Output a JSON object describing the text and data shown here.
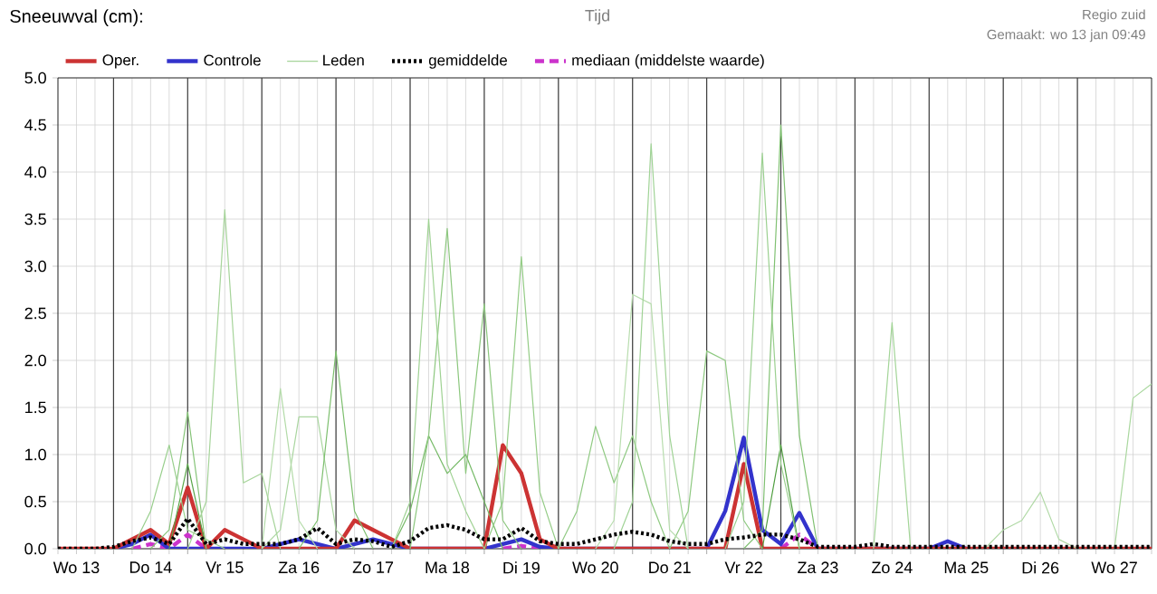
{
  "chart_data": {
    "type": "line",
    "title": "Sneeuwval (cm):",
    "xlabel": "Tijd",
    "annotations": [
      "Regio zuid",
      "Gemaakt: wo 13 jan 09:49"
    ],
    "categories": [
      null,
      "Wo 13",
      null,
      null,
      null,
      "Do 14",
      null,
      null,
      null,
      "Vr 15",
      null,
      null,
      null,
      "Za 16",
      null,
      null,
      null,
      "Zo 17",
      null,
      null,
      null,
      "Ma 18",
      null,
      null,
      null,
      "Di 19",
      null,
      null,
      null,
      "Wo 20",
      null,
      null,
      null,
      "Do 21",
      null,
      null,
      null,
      "Vr 22",
      null,
      null,
      null,
      "Za 23",
      null,
      null,
      null,
      "Zo 24",
      null,
      null,
      null,
      "Ma 25",
      null,
      null,
      null,
      "Di 26",
      null,
      null,
      null,
      "Wo 27",
      null,
      null
    ],
    "series": [
      {
        "name": "Oper.",
        "color": "#cc3333",
        "line_style": "solid",
        "values": [
          0,
          0,
          0,
          0,
          0.1,
          0.2,
          0.05,
          0.65,
          0,
          0.2,
          0.1,
          0,
          0,
          0,
          0,
          0,
          0.3,
          0.2,
          0.1,
          0,
          0,
          0,
          0,
          0,
          1.1,
          0.8,
          0.1,
          0,
          0,
          0,
          0,
          0,
          0,
          0,
          0,
          0,
          0,
          0.9,
          0,
          0,
          0,
          0,
          0,
          0,
          0,
          0,
          0,
          0,
          0,
          0,
          0,
          0,
          0,
          0,
          0,
          0,
          0,
          0,
          0,
          0
        ]
      },
      {
        "name": "Controle",
        "color": "#3333cc",
        "line_style": "solid",
        "values": [
          null,
          null,
          null,
          0,
          0.05,
          0.15,
          0,
          0,
          0,
          0,
          0,
          0,
          0.05,
          0.1,
          0.05,
          0,
          0.05,
          0.1,
          0.05,
          0,
          0,
          0,
          0,
          0,
          0.05,
          0.1,
          0.02,
          0,
          0,
          0,
          0,
          0,
          0,
          0,
          0,
          0,
          0.4,
          1.18,
          0.2,
          0.05,
          0.38,
          0,
          0,
          0,
          0,
          0,
          0,
          0,
          0.08,
          0,
          null,
          null,
          null,
          null,
          null,
          null,
          null,
          null,
          null,
          null
        ]
      },
      {
        "name": "Leden",
        "color": "#a6d49a",
        "line_style": "solid",
        "values": [
          null,
          null,
          null,
          null,
          null,
          null,
          null,
          0,
          0.5,
          3.6,
          0.7,
          0.8,
          0,
          null,
          null,
          null,
          null,
          null,
          null,
          null,
          null,
          null,
          null,
          null,
          null,
          null,
          null,
          null,
          null,
          null,
          null,
          null,
          null,
          null,
          null,
          null,
          null,
          null,
          null,
          null,
          null,
          null,
          null,
          null,
          null,
          null,
          null,
          null,
          null,
          null,
          null,
          null,
          null,
          null,
          null,
          null,
          null,
          null,
          null,
          null
        ]
      },
      {
        "color": "#9fd293",
        "line_style": "solid",
        "values": [
          null,
          null,
          null,
          null,
          null,
          null,
          null,
          null,
          null,
          null,
          null,
          null,
          null,
          null,
          null,
          null,
          null,
          null,
          0,
          0.5,
          3.5,
          0.9,
          0.4,
          0,
          null,
          null,
          null,
          null,
          null,
          null,
          null,
          null,
          null,
          null,
          null,
          null,
          null,
          null,
          null,
          null,
          null,
          null,
          null,
          null,
          null,
          null,
          null,
          null,
          null,
          null,
          null,
          null,
          null,
          null,
          null,
          null,
          null,
          null,
          null,
          null
        ]
      },
      {
        "color": "#8cc77e",
        "line_style": "solid",
        "values": [
          null,
          null,
          null,
          null,
          null,
          null,
          null,
          null,
          null,
          null,
          null,
          null,
          null,
          null,
          null,
          null,
          null,
          null,
          null,
          0,
          1.2,
          3.4,
          0.8,
          2.6,
          0.3,
          0,
          null,
          null,
          null,
          null,
          null,
          null,
          null,
          null,
          null,
          null,
          null,
          null,
          null,
          null,
          null,
          null,
          null,
          null,
          null,
          null,
          null,
          null,
          null,
          null,
          null,
          null,
          null,
          null,
          null,
          null,
          null,
          null,
          null,
          null
        ]
      },
      {
        "color": "#94cc86",
        "line_style": "solid",
        "values": [
          null,
          null,
          null,
          null,
          null,
          null,
          null,
          null,
          null,
          null,
          null,
          null,
          null,
          null,
          null,
          null,
          null,
          null,
          null,
          null,
          null,
          null,
          null,
          0,
          0.5,
          3.1,
          0.6,
          0,
          null,
          null,
          null,
          null,
          null,
          null,
          null,
          null,
          null,
          null,
          null,
          null,
          null,
          null,
          null,
          null,
          null,
          null,
          null,
          null,
          null,
          null,
          null,
          null,
          null,
          null,
          null,
          null,
          null,
          null,
          null,
          null
        ]
      },
      {
        "color": "#7dbf6e",
        "line_style": "solid",
        "values": [
          null,
          null,
          null,
          null,
          null,
          null,
          null,
          null,
          null,
          null,
          null,
          null,
          null,
          0,
          0.3,
          2.1,
          0.4,
          0,
          null,
          null,
          null,
          null,
          null,
          null,
          null,
          null,
          null,
          null,
          null,
          null,
          null,
          null,
          null,
          null,
          null,
          null,
          null,
          null,
          null,
          null,
          null,
          null,
          null,
          null,
          null,
          null,
          null,
          null,
          null,
          null,
          null,
          null,
          null,
          null,
          null,
          null,
          null,
          null,
          null,
          null
        ]
      },
      {
        "color": "#b3dba8",
        "line_style": "solid",
        "values": [
          null,
          null,
          null,
          null,
          null,
          null,
          null,
          null,
          null,
          null,
          null,
          0,
          1.7,
          0.3,
          0,
          null,
          null,
          null,
          null,
          null,
          null,
          null,
          null,
          null,
          null,
          null,
          null,
          null,
          null,
          null,
          null,
          null,
          null,
          null,
          null,
          null,
          null,
          null,
          null,
          null,
          null,
          null,
          null,
          null,
          null,
          null,
          null,
          null,
          null,
          null,
          null,
          null,
          null,
          null,
          null,
          null,
          null,
          null,
          null,
          null
        ]
      },
      {
        "color": "#aad6a0",
        "line_style": "solid",
        "values": [
          null,
          null,
          null,
          null,
          null,
          null,
          null,
          null,
          null,
          null,
          null,
          0,
          0.2,
          1.4,
          1.4,
          0.2,
          0,
          null,
          null,
          null,
          null,
          null,
          null,
          null,
          null,
          null,
          null,
          null,
          null,
          null,
          null,
          null,
          null,
          null,
          null,
          null,
          null,
          null,
          null,
          null,
          null,
          null,
          null,
          null,
          null,
          null,
          null,
          null,
          null,
          null,
          null,
          null,
          null,
          null,
          null,
          null,
          null,
          null,
          null,
          null
        ]
      },
      {
        "color": "#98cf8c",
        "line_style": "solid",
        "values": [
          null,
          null,
          null,
          null,
          0,
          0.4,
          1.1,
          0.2,
          0.1,
          0,
          null,
          null,
          null,
          null,
          null,
          null,
          null,
          null,
          null,
          null,
          null,
          null,
          null,
          null,
          null,
          null,
          null,
          null,
          null,
          null,
          null,
          null,
          null,
          null,
          null,
          null,
          null,
          null,
          null,
          null,
          null,
          null,
          null,
          null,
          null,
          null,
          null,
          null,
          null,
          null,
          null,
          null,
          null,
          null,
          null,
          null,
          null,
          null,
          null,
          null
        ]
      },
      {
        "color": "#86c478",
        "line_style": "solid",
        "values": [
          null,
          null,
          null,
          null,
          null,
          0,
          0.2,
          1.45,
          0,
          null,
          null,
          null,
          null,
          null,
          null,
          null,
          null,
          null,
          null,
          null,
          null,
          null,
          null,
          null,
          null,
          null,
          null,
          null,
          null,
          null,
          null,
          null,
          null,
          null,
          null,
          null,
          null,
          null,
          null,
          null,
          null,
          null,
          null,
          null,
          null,
          null,
          null,
          null,
          null,
          null,
          null,
          null,
          null,
          null,
          null,
          null,
          null,
          null,
          null,
          null
        ]
      },
      {
        "color": "#a0d396",
        "line_style": "solid",
        "values": [
          null,
          null,
          null,
          null,
          null,
          null,
          null,
          null,
          null,
          null,
          null,
          null,
          null,
          null,
          null,
          null,
          null,
          null,
          null,
          null,
          null,
          null,
          null,
          null,
          null,
          null,
          null,
          null,
          null,
          null,
          0,
          0.5,
          4.3,
          1.2,
          0,
          null,
          null,
          null,
          null,
          null,
          null,
          null,
          null,
          null,
          null,
          null,
          null,
          null,
          null,
          null,
          null,
          null,
          null,
          null,
          null,
          null,
          null,
          null,
          null,
          null
        ]
      },
      {
        "color": "#b8ddae",
        "line_style": "solid",
        "values": [
          null,
          null,
          null,
          null,
          null,
          null,
          null,
          null,
          null,
          null,
          null,
          null,
          null,
          null,
          null,
          null,
          null,
          null,
          null,
          null,
          null,
          null,
          null,
          null,
          null,
          null,
          null,
          null,
          null,
          0,
          0.3,
          2.7,
          2.6,
          0.2,
          0,
          null,
          null,
          null,
          null,
          null,
          null,
          null,
          null,
          null,
          null,
          null,
          null,
          null,
          null,
          null,
          null,
          null,
          null,
          null,
          null,
          null,
          null,
          null,
          null,
          null
        ]
      },
      {
        "color": "#9bd090",
        "line_style": "solid",
        "values": [
          null,
          null,
          null,
          null,
          null,
          null,
          null,
          null,
          null,
          null,
          null,
          null,
          null,
          null,
          null,
          null,
          null,
          null,
          null,
          null,
          null,
          null,
          null,
          null,
          null,
          null,
          null,
          null,
          null,
          null,
          null,
          null,
          null,
          null,
          null,
          null,
          0,
          0.5,
          4.2,
          0.9,
          0,
          null,
          null,
          null,
          null,
          null,
          null,
          null,
          null,
          null,
          null,
          null,
          null,
          null,
          null,
          null,
          null,
          null,
          null,
          null
        ]
      },
      {
        "color": "#80c172",
        "line_style": "solid",
        "values": [
          null,
          null,
          null,
          null,
          null,
          null,
          null,
          null,
          null,
          null,
          null,
          null,
          null,
          null,
          null,
          null,
          null,
          null,
          null,
          null,
          null,
          null,
          null,
          null,
          null,
          null,
          null,
          null,
          null,
          null,
          null,
          null,
          null,
          null,
          null,
          null,
          null,
          0,
          0.2,
          4.5,
          1.2,
          0,
          null,
          null,
          null,
          null,
          null,
          null,
          null,
          null,
          null,
          null,
          null,
          null,
          null,
          null,
          null,
          null,
          null,
          null
        ]
      },
      {
        "color": "#a3d598",
        "line_style": "solid",
        "values": [
          null,
          null,
          null,
          null,
          null,
          null,
          null,
          null,
          null,
          null,
          null,
          null,
          null,
          null,
          null,
          null,
          null,
          null,
          null,
          null,
          null,
          null,
          null,
          null,
          null,
          null,
          null,
          null,
          null,
          null,
          null,
          null,
          null,
          null,
          null,
          null,
          null,
          null,
          null,
          null,
          null,
          null,
          null,
          null,
          0,
          2.4,
          0,
          null,
          null,
          null,
          null,
          null,
          null,
          null,
          null,
          null,
          null,
          null,
          null,
          null
        ]
      },
      {
        "color": "#a9d79e",
        "line_style": "solid",
        "values": [
          null,
          null,
          null,
          null,
          null,
          null,
          null,
          null,
          null,
          null,
          null,
          null,
          null,
          null,
          null,
          null,
          null,
          null,
          null,
          null,
          null,
          null,
          null,
          null,
          null,
          null,
          null,
          null,
          null,
          null,
          null,
          null,
          null,
          null,
          null,
          null,
          null,
          null,
          null,
          null,
          null,
          null,
          null,
          null,
          null,
          null,
          null,
          null,
          null,
          null,
          null,
          null,
          null,
          null,
          null,
          null,
          null,
          0,
          1.6,
          1.75
        ]
      },
      {
        "color": "#8ec980",
        "line_style": "solid",
        "values": [
          null,
          null,
          null,
          null,
          null,
          null,
          null,
          null,
          null,
          null,
          null,
          null,
          null,
          null,
          null,
          null,
          null,
          null,
          null,
          null,
          null,
          null,
          null,
          null,
          null,
          null,
          null,
          null,
          null,
          null,
          null,
          null,
          null,
          0,
          0.4,
          2.1,
          2.0,
          0.3,
          0,
          null,
          null,
          null,
          null,
          null,
          null,
          null,
          null,
          null,
          null,
          null,
          null,
          null,
          null,
          null,
          null,
          null,
          null,
          null,
          null,
          null
        ]
      },
      {
        "color": "#74b965",
        "line_style": "solid",
        "values": [
          null,
          null,
          null,
          null,
          null,
          null,
          null,
          null,
          null,
          null,
          null,
          null,
          null,
          null,
          null,
          null,
          null,
          null,
          0,
          0.4,
          1.2,
          0.8,
          1.0,
          0.5,
          0,
          null,
          null,
          null,
          null,
          null,
          null,
          null,
          null,
          null,
          null,
          null,
          null,
          null,
          null,
          null,
          null,
          null,
          null,
          null,
          null,
          null,
          null,
          null,
          null,
          null,
          null,
          null,
          null,
          null,
          null,
          null,
          null,
          null,
          null,
          null
        ]
      },
      {
        "color": "#90ca83",
        "line_style": "solid",
        "values": [
          null,
          null,
          null,
          null,
          null,
          null,
          null,
          null,
          null,
          null,
          null,
          null,
          null,
          null,
          null,
          null,
          null,
          null,
          null,
          null,
          null,
          null,
          null,
          null,
          null,
          null,
          null,
          0,
          0.4,
          1.3,
          0.7,
          1.2,
          0.5,
          0,
          null,
          null,
          null,
          null,
          null,
          null,
          null,
          null,
          null,
          null,
          null,
          null,
          null,
          null,
          null,
          null,
          null,
          null,
          null,
          null,
          null,
          null,
          null,
          null,
          null,
          null
        ]
      },
      {
        "color": "#b0d9a5",
        "line_style": "solid",
        "values": [
          null,
          null,
          null,
          null,
          null,
          null,
          null,
          null,
          null,
          null,
          null,
          null,
          null,
          null,
          null,
          null,
          null,
          null,
          null,
          null,
          null,
          null,
          null,
          null,
          null,
          null,
          null,
          null,
          null,
          null,
          null,
          null,
          null,
          null,
          null,
          null,
          null,
          null,
          null,
          null,
          null,
          null,
          null,
          null,
          null,
          null,
          null,
          null,
          null,
          null,
          0,
          0.2,
          0.3,
          0.6,
          0.1,
          0,
          null,
          null,
          null,
          null
        ]
      },
      {
        "color": "#4f9e3f",
        "line_style": "solid",
        "values": [
          null,
          null,
          null,
          null,
          null,
          null,
          null,
          null,
          null,
          null,
          null,
          null,
          null,
          null,
          null,
          null,
          null,
          null,
          null,
          null,
          null,
          null,
          null,
          null,
          null,
          null,
          null,
          null,
          null,
          null,
          null,
          null,
          null,
          null,
          null,
          null,
          null,
          null,
          0,
          1.1,
          0,
          null,
          null,
          null,
          null,
          null,
          null,
          null,
          null,
          null,
          null,
          null,
          null,
          null,
          null,
          null,
          null,
          null,
          null,
          null
        ]
      },
      {
        "color": "#5aa64a",
        "line_style": "solid",
        "values": [
          null,
          null,
          null,
          null,
          null,
          null,
          0,
          0.9,
          0,
          null,
          null,
          null,
          null,
          null,
          null,
          null,
          null,
          null,
          null,
          null,
          null,
          null,
          null,
          null,
          null,
          null,
          null,
          null,
          null,
          null,
          null,
          null,
          null,
          null,
          null,
          null,
          null,
          null,
          null,
          null,
          null,
          null,
          null,
          null,
          null,
          null,
          null,
          null,
          null,
          null,
          null,
          null,
          null,
          null,
          null,
          null,
          null,
          null,
          null,
          null
        ]
      },
      {
        "name": "gemiddelde",
        "color": "#000000",
        "line_style": "dotted",
        "values": [
          0,
          0,
          0,
          0.02,
          0.08,
          0.12,
          0.05,
          0.32,
          0.05,
          0.1,
          0.05,
          0.05,
          0.05,
          0.1,
          0.22,
          0.05,
          0.1,
          0.08,
          0.02,
          0.08,
          0.22,
          0.25,
          0.2,
          0.1,
          0.1,
          0.22,
          0.08,
          0.05,
          0.05,
          0.1,
          0.15,
          0.18,
          0.15,
          0.08,
          0.05,
          0.05,
          0.1,
          0.12,
          0.15,
          0.15,
          0.1,
          0.02,
          0.02,
          0.02,
          0.05,
          0.02,
          0.02,
          0.02,
          0.02,
          0.02,
          0.02,
          0.02,
          0.02,
          0.02,
          0.02,
          0.02,
          0.02,
          0.02,
          0.02,
          0.02
        ]
      },
      {
        "name": "mediaan (middelste waarde)",
        "color": "#cc33cc",
        "line_style": "dashed",
        "values": [
          null,
          null,
          null,
          null,
          0,
          0.05,
          0,
          0.15,
          0,
          null,
          null,
          null,
          null,
          null,
          null,
          null,
          null,
          null,
          null,
          null,
          null,
          null,
          null,
          null,
          0,
          0.03,
          0,
          null,
          null,
          null,
          null,
          null,
          null,
          null,
          null,
          null,
          null,
          null,
          null,
          0,
          0.15,
          0,
          null,
          null,
          null,
          null,
          null,
          null,
          null,
          null,
          null,
          null,
          null,
          null,
          null,
          null,
          null,
          null,
          null,
          null
        ]
      }
    ],
    "ylim": [
      0,
      5
    ],
    "yticks": [
      {
        "value": 0,
        "label": "0.0"
      },
      {
        "value": 0.5,
        "label": "0.5"
      },
      {
        "value": 1,
        "label": "1.0"
      },
      {
        "value": 1.5,
        "label": "1.5"
      },
      {
        "value": 2,
        "label": "2.0"
      },
      {
        "value": 2.5,
        "label": "2.5"
      },
      {
        "value": 3,
        "label": "3.0"
      },
      {
        "value": 3.5,
        "label": "3.5"
      },
      {
        "value": 4,
        "label": "4.0"
      },
      {
        "value": 4.5,
        "label": "4.5"
      },
      {
        "value": 5,
        "label": "5.0"
      }
    ],
    "grid": true,
    "legend": "top"
  }
}
